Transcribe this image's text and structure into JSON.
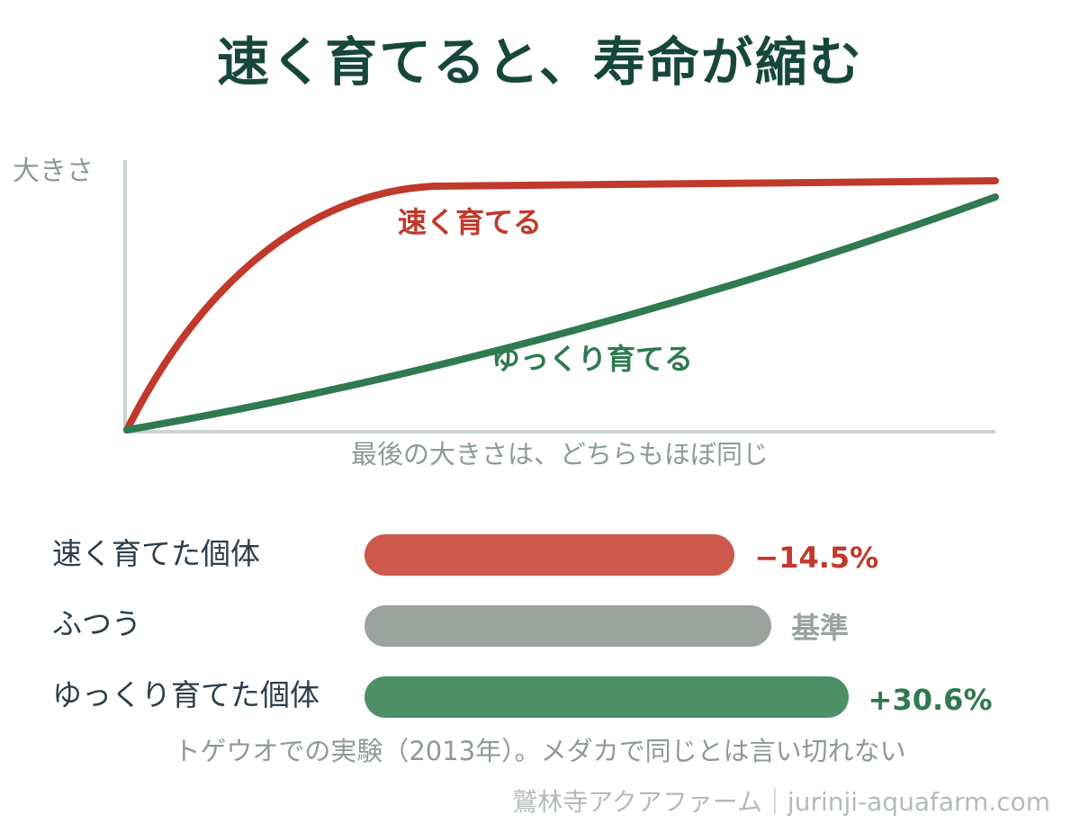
{
  "title": "速く育てると、寿命が縮む",
  "colors": {
    "title": "#17473b",
    "fast": "#c0392b",
    "fast_bar": "#cd5a4d",
    "slow": "#2f7a4f",
    "slow_bar": "#4d9066",
    "neutral_bar": "#9aa39e",
    "neutral_text": "#8f9a95",
    "axis": "#cbd5cf"
  },
  "chart_data": [
    {
      "type": "line",
      "ylabel": "大きさ",
      "xlabel": "最後の大きさは、どちらもほぼ同じ",
      "grid": false,
      "series": [
        {
          "name": "速く育てる",
          "color": "#c0392b",
          "shape": "fast-saturating"
        },
        {
          "name": "ゆっくり育てる",
          "color": "#2f7a4f",
          "shape": "slow-steady"
        }
      ]
    },
    {
      "type": "bar",
      "orientation": "horizontal",
      "categories": [
        "速く育てた個体",
        "ふつう",
        "ゆっくり育てた個体"
      ],
      "values": [
        -14.5,
        0,
        30.6
      ],
      "value_labels": [
        "−14.5%",
        "基準",
        "+30.6%"
      ],
      "value_colors": [
        "#c0392b",
        "#9aa39e",
        "#2f7a4f"
      ]
    }
  ],
  "footnote": "トゲウオでの実験（2013年）。メダカで同じとは言い切れない",
  "credit": "鷲林寺アクアファーム｜jurinji-aquafarm.com"
}
